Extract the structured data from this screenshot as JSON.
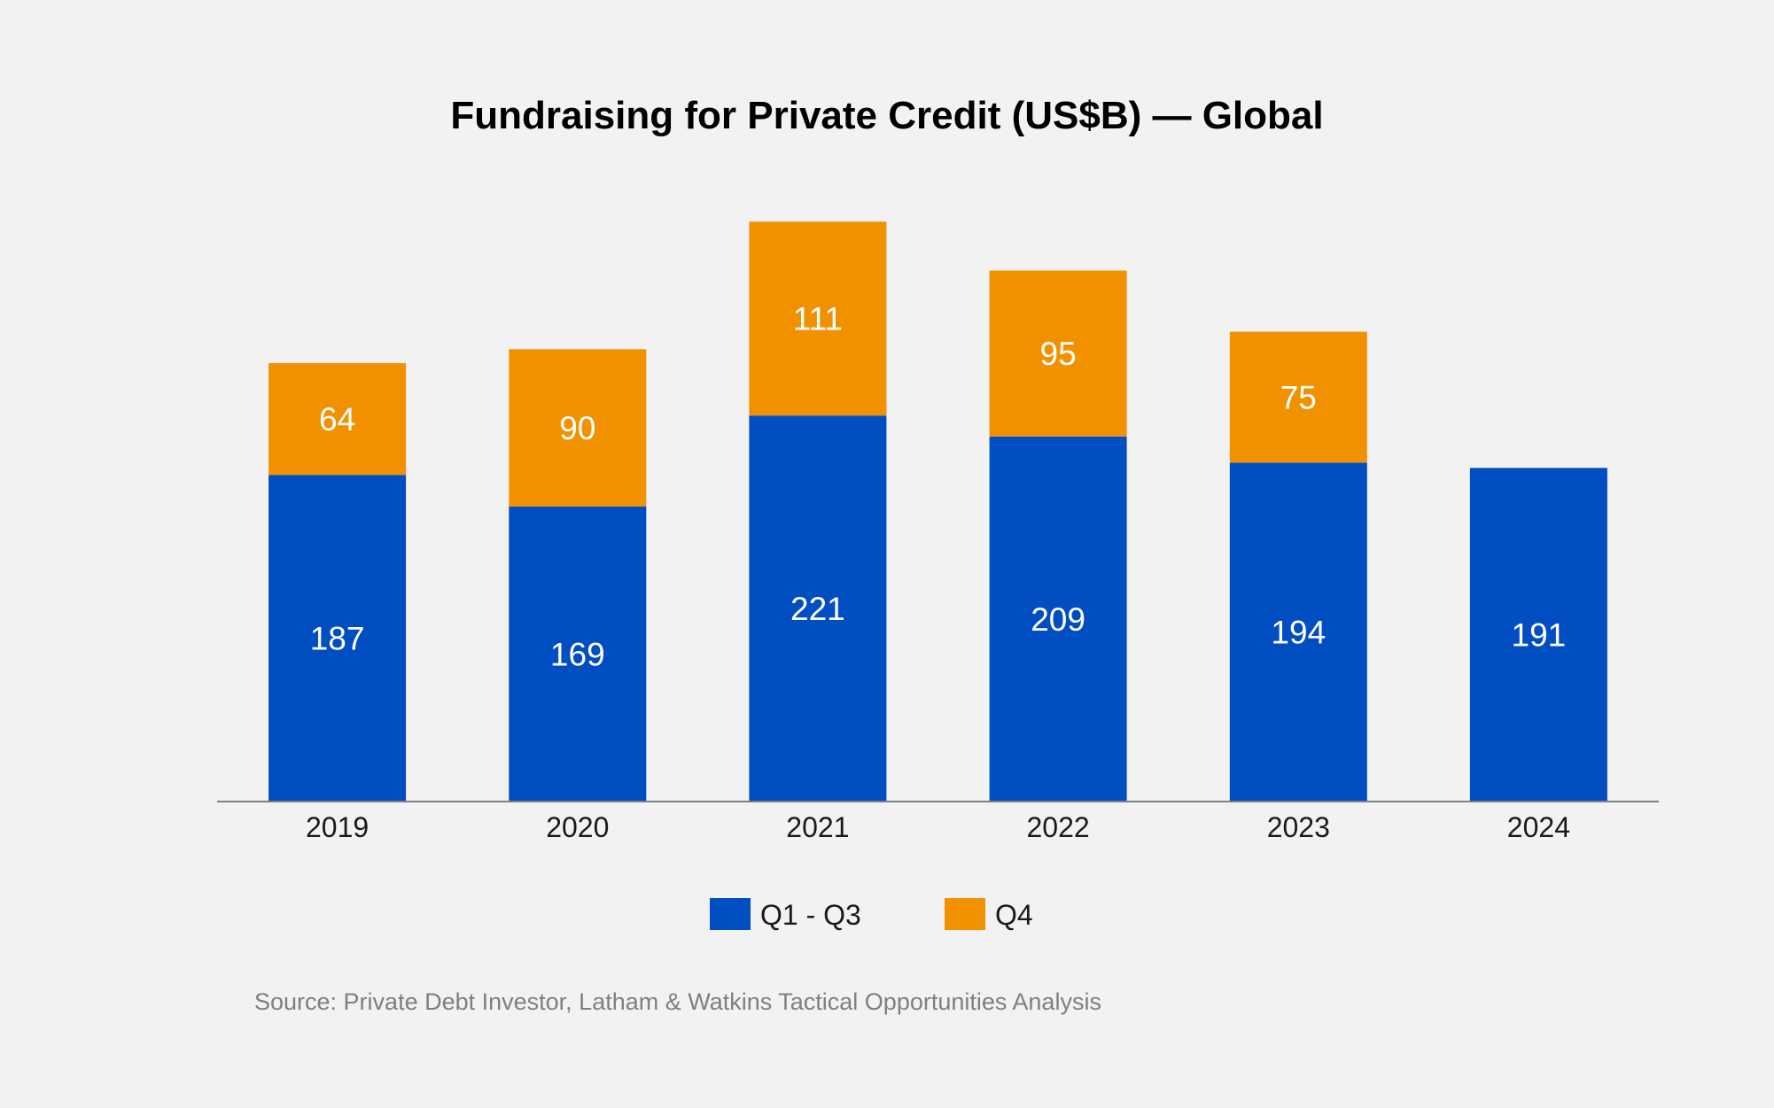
{
  "chart_data": {
    "type": "bar",
    "stacked": true,
    "title": "Fundraising for Private Credit (US$B) — Global",
    "xlabel": "",
    "ylabel": "",
    "categories": [
      "2019",
      "2020",
      "2021",
      "2022",
      "2023",
      "2024"
    ],
    "series": [
      {
        "name": "Q1 - Q3",
        "color": "#004ec2",
        "values": [
          187,
          169,
          221,
          209,
          194,
          191
        ]
      },
      {
        "name": "Q4",
        "color": "#f29100",
        "values": [
          64,
          90,
          111,
          95,
          75,
          null
        ]
      }
    ],
    "ylim": [
      0,
      332
    ],
    "grid": false,
    "legend_position": "bottom-center",
    "source": "Source: Private Debt Investor, Latham & Watkins Tactical Opportunities Analysis"
  }
}
